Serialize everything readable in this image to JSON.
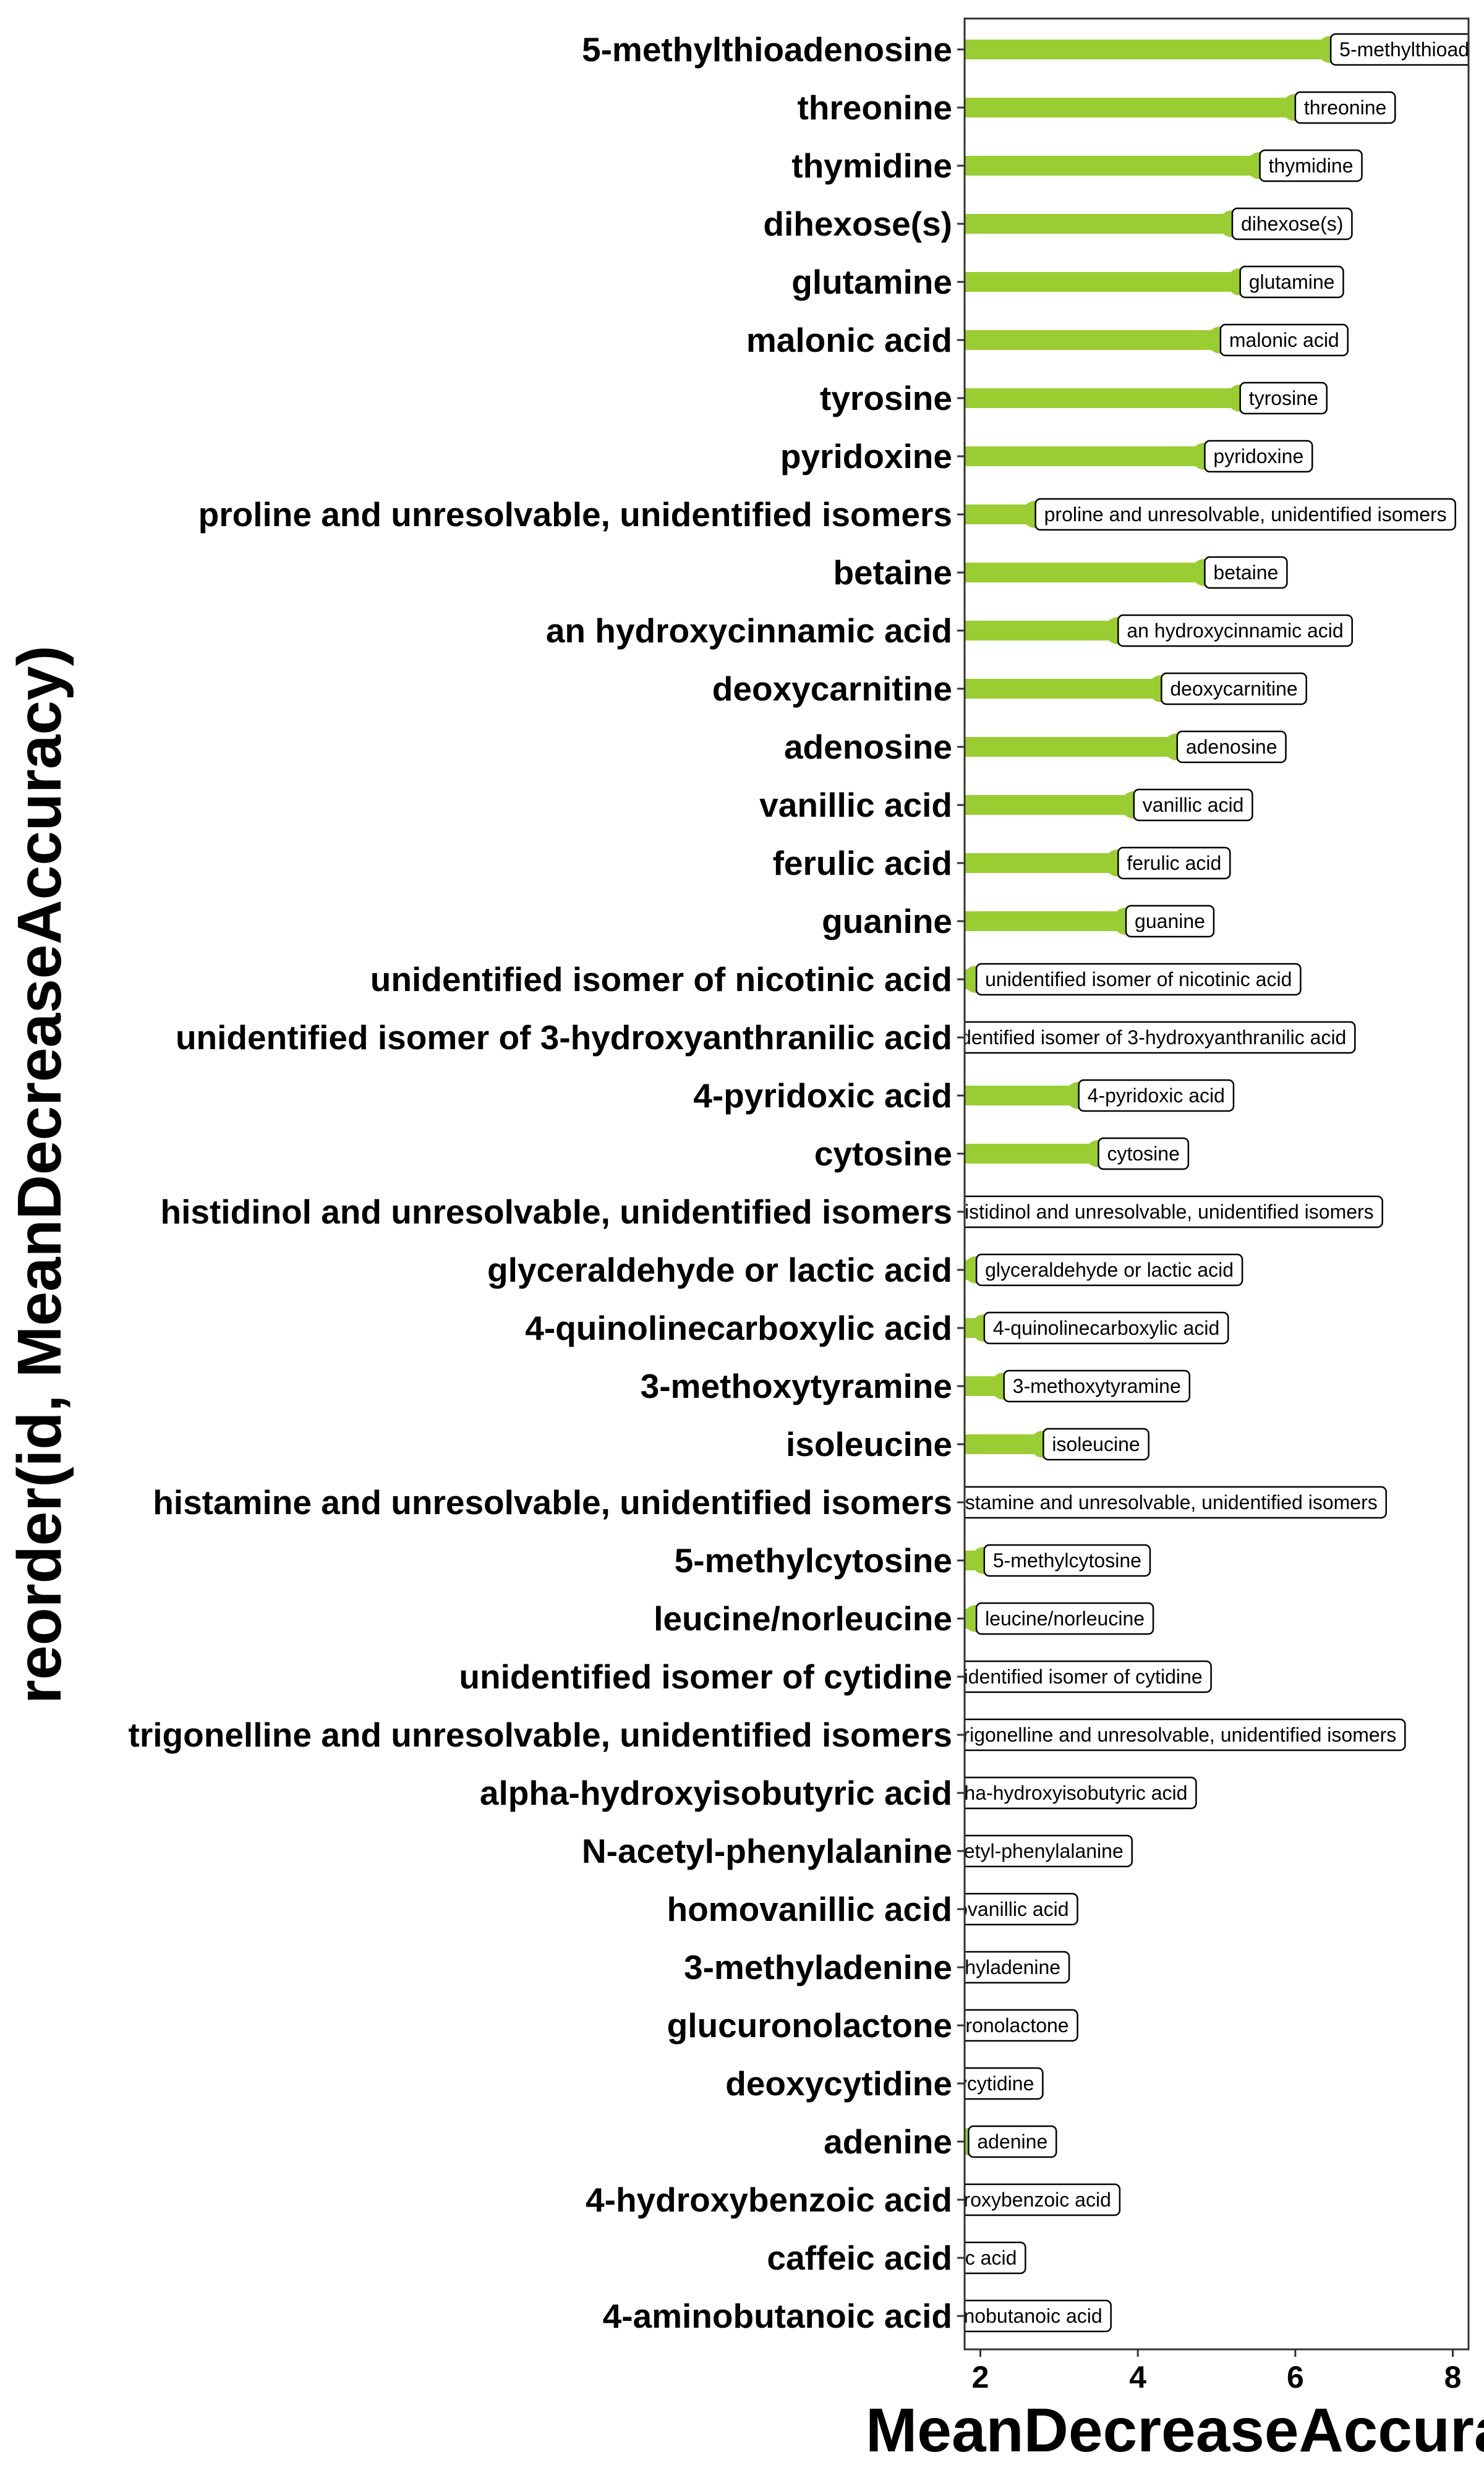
{
  "chart_data": {
    "type": "bar",
    "orientation": "horizontal",
    "xlabel": "MeanDecreaseAccuracy",
    "ylabel": "reorder(id, MeanDecreaseAccuracy)",
    "xlim": [
      1.8,
      8.2
    ],
    "x_ticks": [
      2,
      4,
      6,
      8
    ],
    "grid": false,
    "bar_color": "#9acd32",
    "categories": [
      "5-methylthioadenosine",
      "threonine",
      "thymidine",
      "dihexose(s)",
      "glutamine",
      "malonic acid",
      "tyrosine",
      "pyridoxine",
      "proline and unresolvable, unidentified isomers",
      "betaine",
      "an hydroxycinnamic acid",
      "deoxycarnitine",
      "adenosine",
      "vanillic acid",
      "ferulic acid",
      "guanine",
      "unidentified isomer of nicotinic acid",
      "unidentified isomer of 3-hydroxyanthranilic acid",
      "4-pyridoxic acid",
      "cytosine",
      "histidinol and unresolvable, unidentified isomers",
      "glyceraldehyde or lactic acid",
      "4-quinolinecarboxylic acid",
      "3-methoxytyramine",
      "isoleucine",
      "histamine and unresolvable, unidentified isomers",
      "5-methylcytosine",
      "leucine/norleucine",
      "unidentified isomer of cytidine",
      "trigonelline and unresolvable, unidentified isomers",
      "alpha-hydroxyisobutyric acid",
      "N-acetyl-phenylalanine",
      "homovanillic acid",
      "3-methyladenine",
      "glucuronolactone",
      "deoxycytidine",
      "adenine",
      "4-hydroxybenzoic acid",
      "caffeic acid",
      "4-aminobutanoic acid"
    ],
    "values": [
      6.45,
      6.0,
      5.55,
      5.2,
      5.3,
      5.05,
      5.3,
      4.85,
      2.7,
      4.85,
      3.75,
      4.3,
      4.5,
      3.95,
      3.75,
      3.85,
      1.95,
      1.3,
      3.25,
      3.5,
      1.55,
      1.95,
      2.05,
      2.3,
      2.8,
      1.5,
      2.05,
      1.95,
      1.4,
      1.6,
      1.35,
      1.15,
      1.1,
      1.05,
      1.1,
      1.05,
      1.85,
      1.05,
      1.1,
      1.05
    ]
  }
}
